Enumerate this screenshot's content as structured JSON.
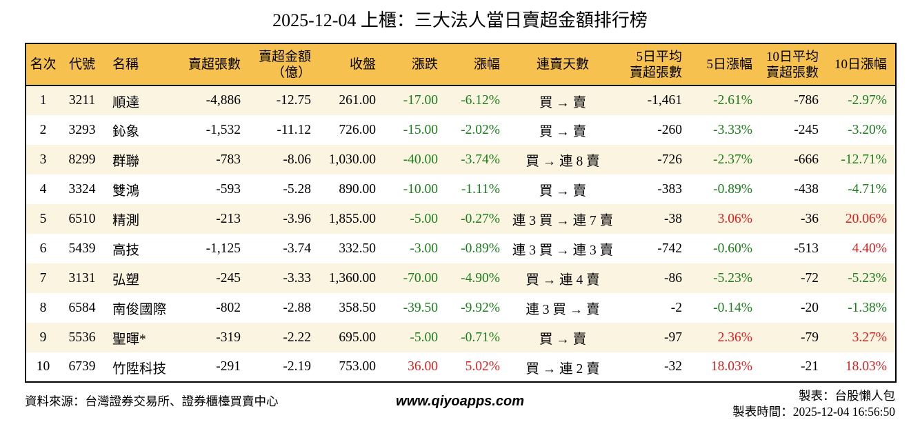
{
  "title": "2025-12-04 上櫃：三大法人當日賣超金額排行榜",
  "colors": {
    "header_bg": "#F6C14F",
    "row_alt": "#FBF4E1",
    "up_red": "#DD1F1F",
    "down_green": "#1A7F1A",
    "border": "#000000"
  },
  "table": {
    "columns": [
      "名次",
      "代號",
      "名稱",
      "賣超張數",
      "賣超金額\n（億）",
      "收盤",
      "漲跌",
      "漲幅",
      "連賣天數",
      "5日平均\n賣超張數",
      "5日漲幅",
      "10日平均\n賣超張數",
      "10日漲幅"
    ],
    "rows": [
      {
        "rank": "1",
        "code": "3211",
        "name": "順達",
        "sell_volume": "-4,886",
        "sell_amount": "-12.75",
        "close": "261.00",
        "change": "-17.00",
        "change_cls": "down",
        "change_pct": "-6.12%",
        "change_pct_cls": "down",
        "streak": "買 → 賣",
        "avg5": "-1,461",
        "pct5": "-2.61%",
        "pct5_cls": "down",
        "avg10": "-786",
        "pct10": "-2.97%",
        "pct10_cls": "down"
      },
      {
        "rank": "2",
        "code": "3293",
        "name": "鈊象",
        "sell_volume": "-1,532",
        "sell_amount": "-11.12",
        "close": "726.00",
        "change": "-15.00",
        "change_cls": "down",
        "change_pct": "-2.02%",
        "change_pct_cls": "down",
        "streak": "買 → 賣",
        "avg5": "-260",
        "pct5": "-3.33%",
        "pct5_cls": "down",
        "avg10": "-245",
        "pct10": "-3.20%",
        "pct10_cls": "down"
      },
      {
        "rank": "3",
        "code": "8299",
        "name": "群聯",
        "sell_volume": "-783",
        "sell_amount": "-8.06",
        "close": "1,030.00",
        "change": "-40.00",
        "change_cls": "down",
        "change_pct": "-3.74%",
        "change_pct_cls": "down",
        "streak": "買 → 連 8 賣",
        "avg5": "-726",
        "pct5": "-2.37%",
        "pct5_cls": "down",
        "avg10": "-666",
        "pct10": "-12.71%",
        "pct10_cls": "down"
      },
      {
        "rank": "4",
        "code": "3324",
        "name": "雙鴻",
        "sell_volume": "-593",
        "sell_amount": "-5.28",
        "close": "890.00",
        "change": "-10.00",
        "change_cls": "down",
        "change_pct": "-1.11%",
        "change_pct_cls": "down",
        "streak": "買 → 賣",
        "avg5": "-383",
        "pct5": "-0.89%",
        "pct5_cls": "down",
        "avg10": "-438",
        "pct10": "-4.71%",
        "pct10_cls": "down"
      },
      {
        "rank": "5",
        "code": "6510",
        "name": "精測",
        "sell_volume": "-213",
        "sell_amount": "-3.96",
        "close": "1,855.00",
        "change": "-5.00",
        "change_cls": "down",
        "change_pct": "-0.27%",
        "change_pct_cls": "down",
        "streak": "連 3 買 → 連 7 賣",
        "avg5": "-38",
        "pct5": "3.06%",
        "pct5_cls": "up",
        "avg10": "-36",
        "pct10": "20.06%",
        "pct10_cls": "up"
      },
      {
        "rank": "6",
        "code": "5439",
        "name": "高技",
        "sell_volume": "-1,125",
        "sell_amount": "-3.74",
        "close": "332.50",
        "change": "-3.00",
        "change_cls": "down",
        "change_pct": "-0.89%",
        "change_pct_cls": "down",
        "streak": "連 3 買 → 連 3 賣",
        "avg5": "-742",
        "pct5": "-0.60%",
        "pct5_cls": "down",
        "avg10": "-513",
        "pct10": "4.40%",
        "pct10_cls": "up"
      },
      {
        "rank": "7",
        "code": "3131",
        "name": "弘塑",
        "sell_volume": "-245",
        "sell_amount": "-3.33",
        "close": "1,360.00",
        "change": "-70.00",
        "change_cls": "down",
        "change_pct": "-4.90%",
        "change_pct_cls": "down",
        "streak": "買 → 連 4 賣",
        "avg5": "-86",
        "pct5": "-5.23%",
        "pct5_cls": "down",
        "avg10": "-72",
        "pct10": "-5.23%",
        "pct10_cls": "down"
      },
      {
        "rank": "8",
        "code": "6584",
        "name": "南俊國際",
        "sell_volume": "-802",
        "sell_amount": "-2.88",
        "close": "358.50",
        "change": "-39.50",
        "change_cls": "down",
        "change_pct": "-9.92%",
        "change_pct_cls": "down",
        "streak": "連 3 買 → 賣",
        "avg5": "-2",
        "pct5": "-0.14%",
        "pct5_cls": "down",
        "avg10": "-20",
        "pct10": "-1.38%",
        "pct10_cls": "down"
      },
      {
        "rank": "9",
        "code": "5536",
        "name": "聖暉*",
        "sell_volume": "-319",
        "sell_amount": "-2.22",
        "close": "695.00",
        "change": "-5.00",
        "change_cls": "down",
        "change_pct": "-0.71%",
        "change_pct_cls": "down",
        "streak": "買 → 賣",
        "avg5": "-97",
        "pct5": "2.36%",
        "pct5_cls": "up",
        "avg10": "-79",
        "pct10": "3.27%",
        "pct10_cls": "up"
      },
      {
        "rank": "10",
        "code": "6739",
        "name": "竹陞科技",
        "sell_volume": "-291",
        "sell_amount": "-2.19",
        "close": "753.00",
        "change": "36.00",
        "change_cls": "up",
        "change_pct": "5.02%",
        "change_pct_cls": "up",
        "streak": "買 → 連 2 賣",
        "avg5": "-32",
        "pct5": "18.03%",
        "pct5_cls": "up",
        "avg10": "-21",
        "pct10": "18.03%",
        "pct10_cls": "up"
      }
    ]
  },
  "footer": {
    "source": "資料來源：台灣證券交易所、證券櫃檯買賣中心",
    "site": "www.qiyoapps.com",
    "maker": "製表：台股懶人包",
    "made_time": "製表時間：2025-12-04 16:56:50"
  }
}
